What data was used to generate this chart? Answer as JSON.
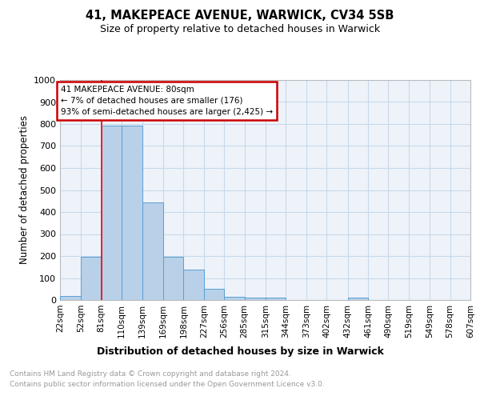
{
  "title": "41, MAKEPEACE AVENUE, WARWICK, CV34 5SB",
  "subtitle": "Size of property relative to detached houses in Warwick",
  "xlabel": "Distribution of detached houses by size in Warwick",
  "ylabel": "Number of detached properties",
  "bar_values": [
    20,
    195,
    793,
    793,
    443,
    195,
    140,
    50,
    15,
    10,
    10,
    0,
    0,
    0,
    10,
    0,
    0,
    0,
    0,
    0
  ],
  "bin_labels": [
    "22sqm",
    "52sqm",
    "81sqm",
    "110sqm",
    "139sqm",
    "169sqm",
    "198sqm",
    "227sqm",
    "256sqm",
    "285sqm",
    "315sqm",
    "344sqm",
    "373sqm",
    "402sqm",
    "432sqm",
    "461sqm",
    "490sqm",
    "519sqm",
    "549sqm",
    "578sqm",
    "607sqm"
  ],
  "bin_edges": [
    22,
    52,
    81,
    110,
    139,
    169,
    198,
    227,
    256,
    285,
    315,
    344,
    373,
    402,
    432,
    461,
    490,
    519,
    549,
    578,
    607
  ],
  "bar_color": "#b8d0e8",
  "bar_edge_color": "#5a9fd4",
  "grid_color": "#c8d8e8",
  "background_color": "#eef3fa",
  "red_line_x": 81,
  "annotation_text": "41 MAKEPEACE AVENUE: 80sqm\n← 7% of detached houses are smaller (176)\n93% of semi-detached houses are larger (2,425) →",
  "annotation_box_edge": "#cc0000",
  "ylim": [
    0,
    1000
  ],
  "yticks": [
    0,
    100,
    200,
    300,
    400,
    500,
    600,
    700,
    800,
    900,
    1000
  ],
  "footer_line1": "Contains HM Land Registry data © Crown copyright and database right 2024.",
  "footer_line2": "Contains public sector information licensed under the Open Government Licence v3.0."
}
